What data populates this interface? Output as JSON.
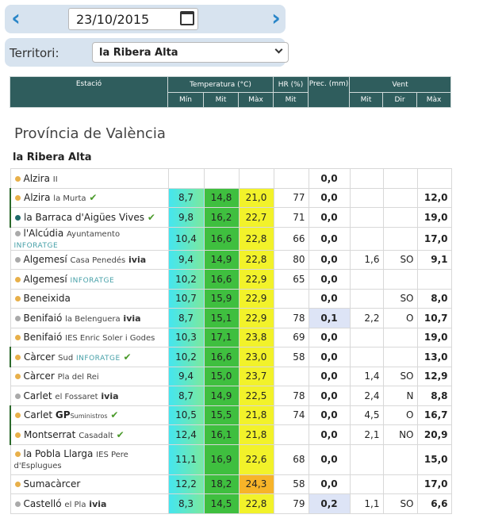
{
  "datebar": {
    "date_value": "23/10/2015",
    "prev_icon": "chevron-left-icon",
    "next_icon": "chevron-right-icon"
  },
  "territory": {
    "label": "Territori:",
    "selected": "la Ribera Alta"
  },
  "table_header": {
    "station": "Estació",
    "temperature": "Temperatura (°C)",
    "hr": "HR (%)",
    "prec": "Prec. (mm)",
    "wind": "Vent",
    "t_min": "Mín",
    "t_mit": "Mit",
    "t_max": "Màx",
    "hr_mit": "Mit",
    "w_mit": "Mit",
    "w_dir": "Dir",
    "w_max": "Màx"
  },
  "province": "Província de València",
  "region": "la Ribera Alta",
  "colors": {
    "header": "#2f5d5d",
    "dot_orange": "#e8b04a",
    "dot_teal": "#1f6a6a",
    "dot_gray": "#aaaaaa",
    "check": "#4a9a2a"
  },
  "stations": [
    {
      "name": "Alzira",
      "sub": "II",
      "brand": "",
      "check": false,
      "dot": "orange",
      "flag": false,
      "tmin": "",
      "tmit": "",
      "tmax": "",
      "hr": "",
      "prec": "0,0",
      "wmit": "",
      "wdir": "",
      "wmax": ""
    },
    {
      "name": "Alzira",
      "sub": "la Murta",
      "brand": "",
      "check": true,
      "dot": "orange",
      "flag": true,
      "tmin": "8,7",
      "tmit": "14,8",
      "tmax": "21,0",
      "hr": "77",
      "prec": "0,0",
      "wmit": "",
      "wdir": "",
      "wmax": "12,0"
    },
    {
      "name": "la Barraca d'Aigües Vives",
      "sub": "",
      "brand": "",
      "check": true,
      "dot": "teal",
      "flag": true,
      "tmin": "9,8",
      "tmit": "16,2",
      "tmax": "22,7",
      "hr": "71",
      "prec": "0,0",
      "wmit": "",
      "wdir": "",
      "wmax": "19,0"
    },
    {
      "name": "l'Alcúdia",
      "sub": "Ayuntamento",
      "brand": "INFORATGE",
      "check": false,
      "dot": "gray",
      "flag": false,
      "tmin": "10,4",
      "tmit": "16,6",
      "tmax": "22,8",
      "hr": "66",
      "prec": "0,0",
      "wmit": "",
      "wdir": "",
      "wmax": "17,0"
    },
    {
      "name": "Algemesí",
      "sub": "Casa Penedés",
      "brand": "ivia",
      "check": false,
      "dot": "gray",
      "flag": false,
      "tmin": "9,4",
      "tmit": "14,9",
      "tmax": "22,8",
      "hr": "80",
      "prec": "0,0",
      "wmit": "1,6",
      "wdir": "SO",
      "wmax": "9,1"
    },
    {
      "name": "Algemesí",
      "sub": "",
      "brand": "INFORATGE",
      "check": false,
      "dot": "orange",
      "flag": false,
      "tmin": "10,2",
      "tmit": "16,6",
      "tmax": "22,9",
      "hr": "65",
      "prec": "0,0",
      "wmit": "",
      "wdir": "",
      "wmax": ""
    },
    {
      "name": "Beneixida",
      "sub": "",
      "brand": "",
      "check": false,
      "dot": "orange",
      "flag": false,
      "tmin": "10,7",
      "tmit": "15,9",
      "tmax": "22,9",
      "hr": "",
      "prec": "0,0",
      "wmit": "",
      "wdir": "SO",
      "wmax": "8,0"
    },
    {
      "name": "Benifaió",
      "sub": "la Belenguera",
      "brand": "ivia",
      "check": false,
      "dot": "gray",
      "flag": false,
      "tmin": "8,7",
      "tmit": "15,1",
      "tmax": "22,9",
      "hr": "78",
      "prec": "0,1",
      "wmit": "2,2",
      "wdir": "O",
      "wmax": "10,7"
    },
    {
      "name": "Benifaió",
      "sub": "IES Enric Soler i Godes",
      "brand": "",
      "check": false,
      "dot": "orange",
      "flag": false,
      "tmin": "10,3",
      "tmit": "17,1",
      "tmax": "23,8",
      "hr": "69",
      "prec": "0,0",
      "wmit": "",
      "wdir": "",
      "wmax": "19,0"
    },
    {
      "name": "Càrcer",
      "sub": "Sud",
      "brand": "INFORATGE",
      "check": true,
      "dot": "orange",
      "flag": true,
      "tmin": "10,2",
      "tmit": "16,6",
      "tmax": "23,0",
      "hr": "58",
      "prec": "0,0",
      "wmit": "",
      "wdir": "",
      "wmax": "13,0"
    },
    {
      "name": "Càrcer",
      "sub": "Pla del Rei",
      "brand": "",
      "check": false,
      "dot": "orange",
      "flag": false,
      "tmin": "9,4",
      "tmit": "15,0",
      "tmax": "23,7",
      "hr": "",
      "prec": "0,0",
      "wmit": "1,4",
      "wdir": "SO",
      "wmax": "12,9"
    },
    {
      "name": "Carlet",
      "sub": "el Fossaret",
      "brand": "ivia",
      "check": false,
      "dot": "gray",
      "flag": false,
      "tmin": "8,7",
      "tmit": "14,9",
      "tmax": "22,5",
      "hr": "78",
      "prec": "0,0",
      "wmit": "2,4",
      "wdir": "N",
      "wmax": "8,8"
    },
    {
      "name": "Carlet",
      "sub": "",
      "brand": "GP",
      "brand2": "Suministros",
      "check": true,
      "dot": "orange",
      "flag": true,
      "tmin": "10,5",
      "tmit": "15,5",
      "tmax": "21,8",
      "hr": "74",
      "prec": "0,0",
      "wmit": "4,5",
      "wdir": "O",
      "wmax": "16,7"
    },
    {
      "name": "Montserrat",
      "sub": "Casadalt",
      "brand": "",
      "check": true,
      "dot": "orange",
      "flag": true,
      "tmin": "12,4",
      "tmit": "16,1",
      "tmax": "21,8",
      "hr": "",
      "prec": "0,0",
      "wmit": "2,1",
      "wdir": "NO",
      "wmax": "20,9"
    },
    {
      "name": "la Pobla Llarga",
      "sub": "IES Pere d'Esplugues",
      "brand": "",
      "check": false,
      "dot": "orange",
      "flag": false,
      "tmin": "11,1",
      "tmit": "16,9",
      "tmax": "22,6",
      "hr": "68",
      "prec": "0,0",
      "wmit": "",
      "wdir": "",
      "wmax": "15,0"
    },
    {
      "name": "Sumacàrcer",
      "sub": "",
      "brand": "",
      "check": false,
      "dot": "orange",
      "flag": false,
      "tmin": "12,2",
      "tmit": "18,2",
      "tmax": "24,3",
      "hr": "58",
      "prec": "0,0",
      "wmit": "",
      "wdir": "",
      "wmax": "17,0"
    },
    {
      "name": "Castelló",
      "sub": "el Pla",
      "brand": "ivia",
      "check": false,
      "dot": "gray",
      "flag": false,
      "tmin": "8,3",
      "tmit": "14,5",
      "tmax": "22,8",
      "hr": "79",
      "prec": "0,2",
      "wmit": "1,1",
      "wdir": "SO",
      "wmax": "6,6"
    }
  ]
}
